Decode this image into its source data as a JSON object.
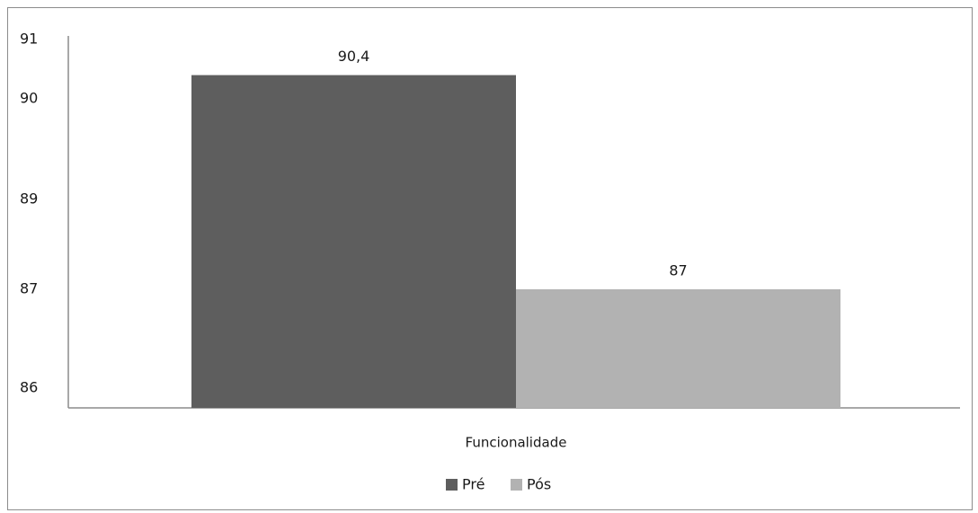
{
  "chart_data": {
    "type": "bar",
    "categories": [
      "Funcionalidade"
    ],
    "series": [
      {
        "name": "Pré",
        "values": [
          90.4
        ],
        "label": "90,4",
        "color": "#5e5e5e"
      },
      {
        "name": "Pós",
        "values": [
          87
        ],
        "label": "87",
        "color": "#b2b2b2"
      }
    ],
    "yticks": [
      {
        "value": 91,
        "label": "91"
      },
      {
        "value": 90,
        "label": "90"
      },
      {
        "value": 89,
        "label": "89"
      },
      {
        "value": 87,
        "label": "87"
      },
      {
        "value": 86,
        "label": "86"
      }
    ],
    "title": "",
    "xlabel": "",
    "ylabel": "",
    "grid": false,
    "legend_position": "bottom-center",
    "colors": {
      "axis": "#8c8c8c",
      "border": "#8c8c8c"
    }
  }
}
